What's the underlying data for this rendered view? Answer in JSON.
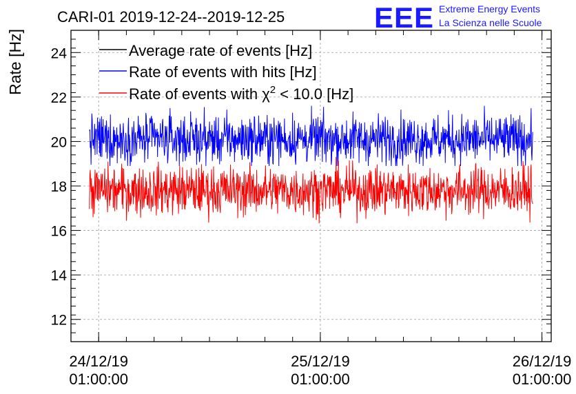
{
  "chart_data": {
    "type": "line",
    "title": "CARI-01 2019-12-24--2019-12-25",
    "ylabel": "Rate [Hz]",
    "xlabel": "",
    "ylim": [
      11,
      25
    ],
    "yticks": [
      12,
      14,
      16,
      18,
      20,
      22,
      24
    ],
    "x_range": [
      "2019-12-23 22:00:00",
      "2019-12-26 02:00:00"
    ],
    "x_ticks": [
      {
        "x": "2019-12-24 01:00:00",
        "date": "24/12/19",
        "time": "01:00:00"
      },
      {
        "x": "2019-12-25 01:00:00",
        "date": "25/12/19",
        "time": "01:00:00"
      },
      {
        "x": "2019-12-26 01:00:00",
        "date": "26/12/19",
        "time": "01:00:00"
      }
    ],
    "x_data_range": [
      "2019-12-24 00:00:00",
      "2019-12-26 00:00:00"
    ],
    "grid": true,
    "legend_position": "top-left",
    "series": [
      {
        "name": "Average rate of events [Hz]",
        "color": "#000000",
        "mean": 0,
        "spread": 0,
        "visible": false
      },
      {
        "name": "Rate of events with hits [Hz]",
        "color": "#0000ff",
        "mean": 20.1,
        "spread": 0.55,
        "min": 18.9,
        "max": 21.9
      },
      {
        "name_prefix": "Rate of events with ",
        "name_symbol": "χ",
        "name_sup": "2",
        "name_suffix": " < 10.0 [Hz]",
        "color": "#ff0000",
        "mean": 17.8,
        "spread": 0.55,
        "min": 15.7,
        "max": 19.8
      }
    ]
  },
  "logo": {
    "mark": "EEE",
    "line1": "Extreme Energy Events",
    "line2": "La Scienza nelle Scuole"
  }
}
